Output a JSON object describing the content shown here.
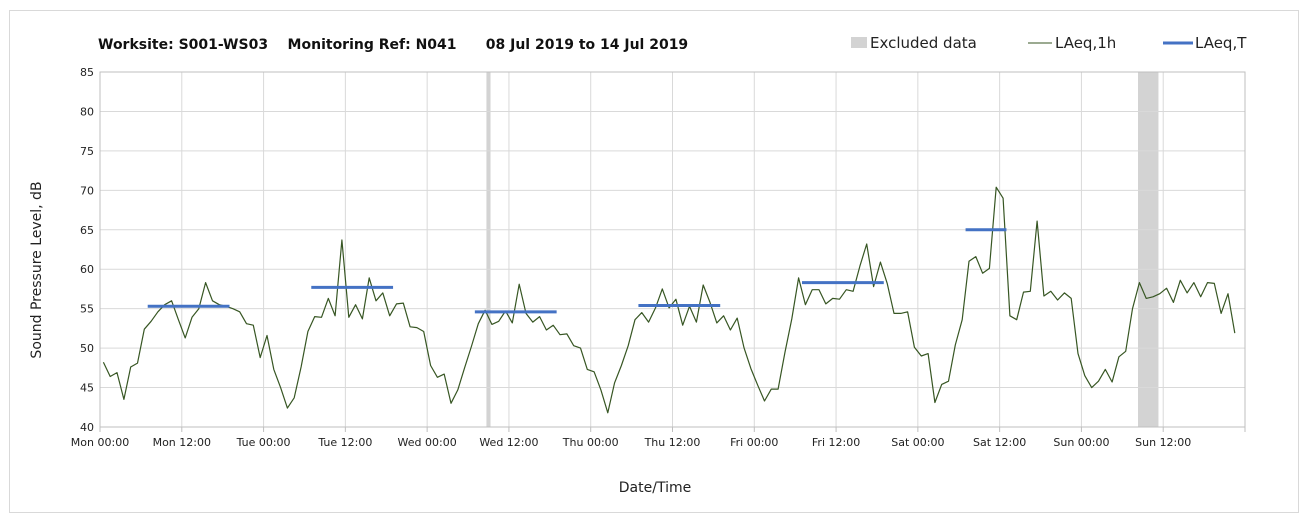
{
  "chart_data": {
    "type": "line",
    "title": "Worksite: S001-WS03    Monitoring Ref: N041      08 Jul 2019 to 14 Jul 2019",
    "xlabel": "Date/Time",
    "ylabel": "Sound Pressure Level, dB",
    "ylim": [
      40,
      85
    ],
    "yticks": [
      "40",
      "45",
      "50",
      "55",
      "60",
      "65",
      "70",
      "75",
      "80",
      "85"
    ],
    "xlim_hours": [
      0,
      168
    ],
    "xticks": [
      {
        "hour": 0,
        "label": "Mon 00:00"
      },
      {
        "hour": 12,
        "label": "Mon 12:00"
      },
      {
        "hour": 24,
        "label": "Tue 00:00"
      },
      {
        "hour": 36,
        "label": "Tue 12:00"
      },
      {
        "hour": 48,
        "label": "Wed 00:00"
      },
      {
        "hour": 60,
        "label": "Wed 12:00"
      },
      {
        "hour": 72,
        "label": "Thu 00:00"
      },
      {
        "hour": 84,
        "label": "Thu 12:00"
      },
      {
        "hour": 96,
        "label": "Fri 00:00"
      },
      {
        "hour": 108,
        "label": "Fri 12:00"
      },
      {
        "hour": 120,
        "label": "Sat 00:00"
      },
      {
        "hour": 132,
        "label": "Sat 12:00"
      },
      {
        "hour": 144,
        "label": "Sun 00:00"
      },
      {
        "hour": 156,
        "label": "Sun 12:00"
      }
    ],
    "grid": "vertical and horizontal",
    "legend_placement": "top-right",
    "legend": [
      {
        "name": "Excluded data",
        "kind": "band",
        "color": "#d3d3d3"
      },
      {
        "name": "LAeq,1h",
        "kind": "line",
        "color": "#375623"
      },
      {
        "name": "LAeq,T",
        "kind": "thick-line",
        "color": "#4472c4"
      }
    ],
    "excluded_periods_hours": [
      [
        56.7,
        57.3
      ],
      [
        152.3,
        155.3
      ]
    ],
    "series": [
      {
        "name": "LAeq,1h",
        "color": "#375623",
        "x_start_hour": 0.5,
        "x_step_hours": 1,
        "values": [
          48.2,
          46.4,
          46.9,
          43.5,
          47.6,
          48.1,
          52.4,
          53.4,
          54.6,
          55.5,
          56.0,
          53.6,
          51.3,
          53.9,
          55.0,
          58.3,
          56.0,
          55.5,
          55.3,
          55.0,
          54.6,
          53.1,
          52.9,
          48.8,
          51.6,
          47.3,
          45.0,
          42.4,
          43.7,
          47.6,
          52.1,
          54.0,
          53.9,
          56.3,
          54.1,
          63.7,
          53.9,
          55.5,
          53.7,
          58.9,
          56.0,
          57.0,
          54.1,
          55.6,
          55.7,
          52.7,
          52.6,
          52.1,
          47.8,
          46.3,
          46.7,
          43.0,
          44.7,
          47.5,
          50.2,
          53.1,
          54.8,
          53.0,
          53.4,
          54.7,
          53.2,
          58.1,
          54.4,
          53.3,
          54.0,
          52.3,
          52.9,
          51.7,
          51.8,
          50.3,
          50.0,
          47.3,
          47.0,
          44.7,
          41.8,
          45.6,
          47.8,
          50.3,
          53.6,
          54.5,
          53.3,
          55.1,
          57.5,
          55.1,
          56.2,
          52.9,
          55.3,
          53.3,
          58.0,
          55.8,
          53.2,
          54.1,
          52.3,
          53.8,
          50.0,
          47.4,
          45.3,
          43.3,
          44.8,
          44.8,
          49.5,
          53.7,
          58.9,
          55.5,
          57.4,
          57.4,
          55.6,
          56.3,
          56.2,
          57.4,
          57.2,
          60.4,
          63.2,
          57.8,
          60.9,
          58.2,
          54.4,
          54.4,
          54.6,
          50.1,
          49.0,
          49.3,
          43.1,
          45.4,
          45.8,
          50.4,
          53.6,
          61.0,
          61.6,
          59.5,
          60.1,
          70.4,
          69.0,
          54.1,
          53.6,
          57.1,
          57.2,
          66.1,
          56.6,
          57.2,
          56.1,
          57.0,
          56.3,
          49.3,
          46.5,
          45.0,
          45.8,
          47.3,
          45.7,
          48.9,
          49.6,
          55.0,
          58.3,
          56.3,
          56.5,
          56.9,
          57.6,
          55.8,
          58.6,
          57.0,
          58.3,
          56.5,
          58.3,
          58.2,
          54.4,
          56.9,
          51.9
        ]
      },
      {
        "name": "LAeq,T",
        "color": "#4472c4",
        "segments": [
          {
            "from_hour": 7,
            "to_hour": 19,
            "value": 55.3
          },
          {
            "from_hour": 31,
            "to_hour": 43,
            "value": 57.7
          },
          {
            "from_hour": 55,
            "to_hour": 67,
            "value": 54.6
          },
          {
            "from_hour": 79,
            "to_hour": 91,
            "value": 55.4
          },
          {
            "from_hour": 103,
            "to_hour": 115,
            "value": 58.3
          },
          {
            "from_hour": 127,
            "to_hour": 133,
            "value": 65.0
          }
        ]
      }
    ]
  }
}
